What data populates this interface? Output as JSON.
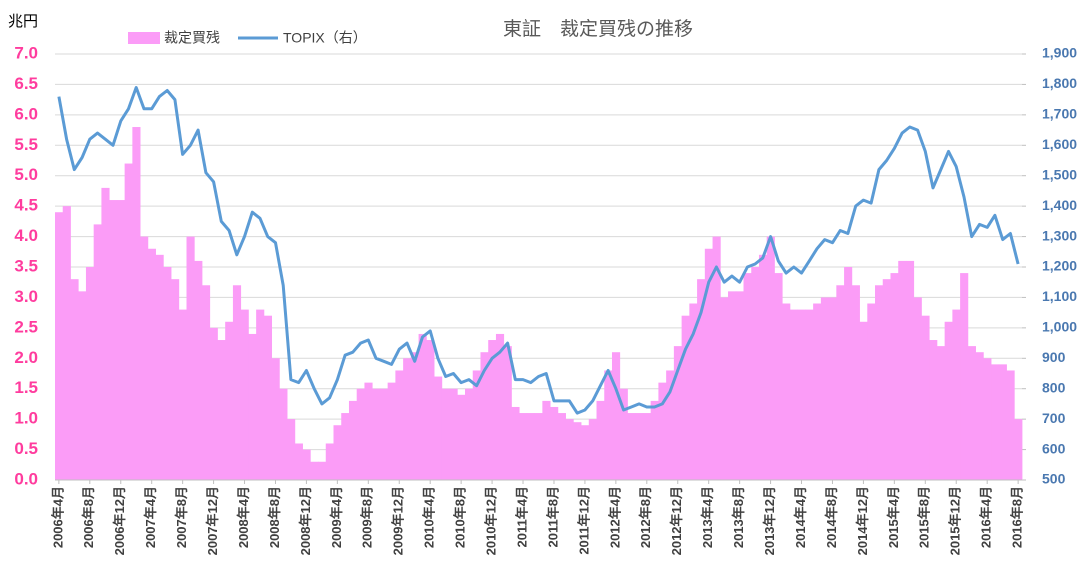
{
  "chart_data": {
    "type": "bar_line",
    "title": "東証　裁定買残の推移",
    "ylabel": "兆円",
    "categories": [
      "2006年4月",
      null,
      null,
      null,
      "2006年8月",
      null,
      null,
      null,
      "2006年12月",
      null,
      null,
      null,
      "2007年4月",
      null,
      null,
      null,
      "2007年8月",
      null,
      null,
      null,
      "2007年12月",
      null,
      null,
      null,
      "2008年4月",
      null,
      null,
      null,
      "2008年8月",
      null,
      null,
      null,
      "2008年12月",
      null,
      null,
      null,
      "2009年4月",
      null,
      null,
      null,
      "2009年8月",
      null,
      null,
      null,
      "2009年12月",
      null,
      null,
      null,
      "2010年4月",
      null,
      null,
      null,
      "2010年8月",
      null,
      null,
      null,
      "2010年12月",
      null,
      null,
      null,
      "2011年4月",
      null,
      null,
      null,
      "2011年8月",
      null,
      null,
      null,
      "2011年12月",
      null,
      null,
      null,
      "2012年4月",
      null,
      null,
      null,
      "2012年8月",
      null,
      null,
      null,
      "2012年12月",
      null,
      null,
      null,
      "2013年4月",
      null,
      null,
      null,
      "2013年8月",
      null,
      null,
      null,
      "2013年12月",
      null,
      null,
      null,
      "2014年4月",
      null,
      null,
      null,
      "2014年8月",
      null,
      null,
      null,
      "2014年12月",
      null,
      null,
      null,
      "2015年4月",
      null,
      null,
      null,
      "2015年8月",
      null,
      null,
      null,
      "2015年12月",
      null,
      null,
      null,
      "2016年4月",
      null,
      null,
      null,
      "2016年8月"
    ],
    "series": [
      {
        "name": "裁定買残",
        "color": "#fb9cf7",
        "axis": "y",
        "values": [
          4.4,
          4.5,
          3.3,
          3.1,
          3.5,
          4.2,
          4.8,
          4.6,
          4.6,
          5.2,
          5.8,
          4.0,
          3.8,
          3.7,
          3.5,
          3.3,
          2.8,
          4.0,
          3.6,
          3.2,
          2.5,
          2.3,
          2.6,
          3.2,
          2.8,
          2.4,
          2.8,
          2.7,
          2.0,
          1.5,
          1.0,
          0.6,
          0.5,
          0.3,
          0.3,
          0.6,
          0.9,
          1.1,
          1.3,
          1.5,
          1.6,
          1.5,
          1.5,
          1.6,
          1.8,
          2.0,
          2.1,
          2.4,
          2.3,
          1.7,
          1.5,
          1.5,
          1.4,
          1.5,
          1.8,
          2.1,
          2.3,
          2.4,
          2.2,
          1.2,
          1.1,
          1.1,
          1.1,
          1.3,
          1.2,
          1.1,
          1.0,
          0.95,
          0.9,
          1.0,
          1.3,
          1.8,
          2.1,
          1.5,
          1.1,
          1.1,
          1.1,
          1.3,
          1.6,
          1.8,
          2.2,
          2.7,
          2.9,
          3.3,
          3.8,
          4.0,
          3.0,
          3.1,
          3.1,
          3.4,
          3.5,
          3.7,
          4.0,
          3.4,
          2.9,
          2.8,
          2.8,
          2.8,
          2.9,
          3.0,
          3.0,
          3.2,
          3.5,
          3.2,
          2.6,
          2.9,
          3.2,
          3.3,
          3.4,
          3.6,
          3.6,
          3.0,
          2.7,
          2.3,
          2.2,
          2.6,
          2.8,
          3.4,
          2.2,
          2.1,
          2.0,
          1.9,
          1.9,
          1.8,
          1.0
        ]
      },
      {
        "name": "TOPIX（右）",
        "color": "#5b9bd5",
        "axis": "y2",
        "values": [
          1760,
          1620,
          1520,
          1560,
          1620,
          1640,
          1620,
          1600,
          1680,
          1720,
          1790,
          1720,
          1720,
          1760,
          1780,
          1750,
          1570,
          1600,
          1650,
          1510,
          1480,
          1350,
          1320,
          1240,
          1300,
          1380,
          1360,
          1300,
          1280,
          1140,
          830,
          820,
          860,
          800,
          750,
          770,
          830,
          910,
          920,
          950,
          960,
          900,
          890,
          880,
          930,
          950,
          890,
          970,
          990,
          900,
          840,
          850,
          820,
          830,
          810,
          860,
          900,
          920,
          950,
          830,
          830,
          820,
          840,
          850,
          760,
          760,
          760,
          720,
          730,
          760,
          810,
          860,
          800,
          730,
          740,
          750,
          740,
          740,
          750,
          790,
          860,
          930,
          980,
          1050,
          1150,
          1200,
          1150,
          1170,
          1150,
          1200,
          1210,
          1230,
          1300,
          1220,
          1180,
          1200,
          1180,
          1220,
          1260,
          1290,
          1280,
          1320,
          1310,
          1400,
          1420,
          1410,
          1520,
          1550,
          1590,
          1640,
          1660,
          1650,
          1580,
          1460,
          1520,
          1580,
          1530,
          1430,
          1300,
          1340,
          1330,
          1370,
          1290,
          1310,
          1210
        ]
      }
    ],
    "ylim": [
      0,
      7
    ],
    "yticks": [
      {
        "value": 0,
        "label": "0.0"
      },
      {
        "value": 0.5,
        "label": "0.5"
      },
      {
        "value": 1,
        "label": "1.0"
      },
      {
        "value": 1.5,
        "label": "1.5"
      },
      {
        "value": 2,
        "label": "2.0"
      },
      {
        "value": 2.5,
        "label": "2.5"
      },
      {
        "value": 3,
        "label": "3.0"
      },
      {
        "value": 3.5,
        "label": "3.5"
      },
      {
        "value": 4,
        "label": "4.0"
      },
      {
        "value": 4.5,
        "label": "4.5"
      },
      {
        "value": 5,
        "label": "5.0"
      },
      {
        "value": 5.5,
        "label": "5.5"
      },
      {
        "value": 6,
        "label": "6.0"
      },
      {
        "value": 6.5,
        "label": "6.5"
      },
      {
        "value": 7,
        "label": "7.0"
      }
    ],
    "y2lim": [
      500,
      1900
    ],
    "y2ticks": [
      500,
      600,
      700,
      800,
      900,
      {
        "value": 1000,
        "label": "1,000"
      },
      {
        "value": 1100,
        "label": "1,100"
      },
      {
        "value": 1200,
        "label": "1,200"
      },
      {
        "value": 1300,
        "label": "1,300"
      },
      {
        "value": 1400,
        "label": "1,400"
      },
      {
        "value": 1500,
        "label": "1,500"
      },
      {
        "value": 1600,
        "label": "1,600"
      },
      {
        "value": 1700,
        "label": "1,700"
      },
      {
        "value": 1800,
        "label": "1,800"
      },
      {
        "value": 1900,
        "label": "1,900"
      }
    ],
    "grid": true,
    "legend": "top"
  }
}
